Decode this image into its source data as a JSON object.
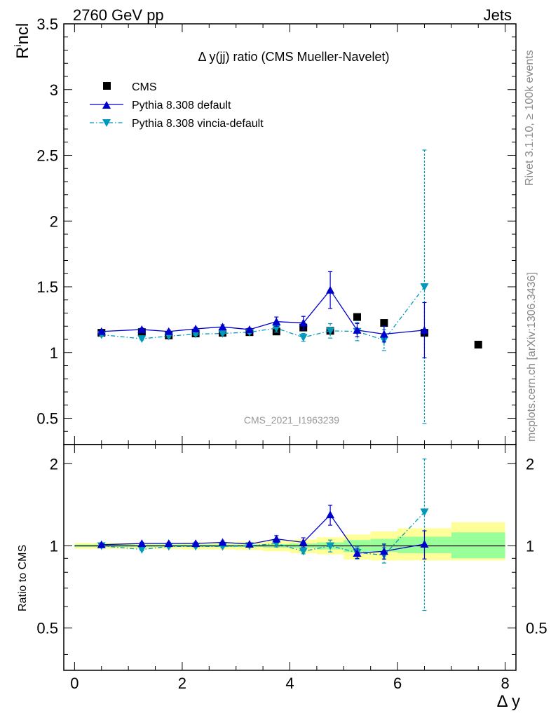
{
  "header": {
    "left": "2760 GeV pp",
    "right": "Jets"
  },
  "watermark": {
    "rivet": "Rivet 3.1.10, ≥ 100k events",
    "mcplots": "mcplots.cern.ch [arXiv:1306.3436]"
  },
  "colors": {
    "cms": "#000000",
    "default": "#0000cc",
    "vincia": "#0099bb",
    "band_stat": "#99ff99",
    "band_tot": "#ffff99"
  },
  "chart_data": {
    "type": "scatter",
    "title": "Δ y(jj) ratio (CMS Mueller-Navelet)",
    "analysis_label": "CMS_2021_I1963239",
    "xlabel": "Δ y",
    "ylabel_main": "R^incl",
    "ylabel_ratio": "Ratio to CMS",
    "xlim": [
      -0.2,
      8.2
    ],
    "ylim_main": [
      0.3,
      3.5
    ],
    "ylim_ratio": [
      0.35,
      2.35
    ],
    "x_ticks": [
      0,
      2,
      4,
      6,
      8
    ],
    "y_ticks_main": [
      0.5,
      1,
      1.5,
      2,
      2.5,
      3,
      3.5
    ],
    "y_ticks_ratio": [
      0.5,
      1,
      2
    ],
    "legend_position": "top-left",
    "legend": [
      "CMS",
      "Pythia 8.308 default",
      "Pythia 8.308 vincia-default"
    ],
    "series": [
      {
        "name": "CMS",
        "marker": "square",
        "x": [
          0.5,
          1.25,
          1.75,
          2.25,
          2.75,
          3.25,
          3.75,
          4.25,
          4.75,
          5.25,
          5.75,
          6.5,
          7.5
        ],
        "y": [
          1.15,
          1.155,
          1.13,
          1.145,
          1.15,
          1.155,
          1.16,
          1.19,
          1.165,
          1.27,
          1.225,
          1.15,
          1.06
        ]
      },
      {
        "name": "Pythia 8.308 default",
        "marker": "triangle-up",
        "line": "solid",
        "x": [
          0.5,
          1.25,
          1.75,
          2.25,
          2.75,
          3.25,
          3.75,
          4.25,
          4.75,
          5.25,
          5.75,
          6.5
        ],
        "y": [
          1.16,
          1.175,
          1.16,
          1.18,
          1.195,
          1.175,
          1.235,
          1.225,
          1.475,
          1.17,
          1.14,
          1.17
        ],
        "yerr": [
          0.01,
          0.01,
          0.01,
          0.01,
          0.015,
          0.01,
          0.035,
          0.05,
          0.14,
          0.05,
          0.06,
          0.21
        ]
      },
      {
        "name": "Pythia 8.308 vincia-default",
        "marker": "triangle-down",
        "line": "dashdot",
        "x": [
          0.5,
          1.25,
          1.75,
          2.25,
          2.75,
          3.25,
          3.75,
          4.25,
          4.75,
          5.25,
          5.75,
          6.5
        ],
        "y": [
          1.135,
          1.105,
          1.125,
          1.14,
          1.145,
          1.155,
          1.185,
          1.115,
          1.165,
          1.16,
          1.095,
          1.5
        ],
        "yerr": [
          0.01,
          0.01,
          0.01,
          0.01,
          0.01,
          0.01,
          0.03,
          0.03,
          0.055,
          0.07,
          0.08,
          1.04
        ]
      }
    ],
    "ratio": {
      "bands": {
        "edges": [
          0,
          1,
          1.5,
          2,
          2.5,
          3,
          3.5,
          4,
          4.5,
          5,
          5.5,
          6,
          7,
          8
        ],
        "stat_lo": [
          0.99,
          0.99,
          0.99,
          0.99,
          0.99,
          0.99,
          0.985,
          0.98,
          0.97,
          0.95,
          0.95,
          0.94,
          0.9
        ],
        "stat_hi": [
          1.01,
          1.01,
          1.01,
          1.01,
          1.01,
          1.01,
          1.015,
          1.02,
          1.03,
          1.05,
          1.06,
          1.08,
          1.12
        ],
        "tot_lo": [
          0.975,
          0.975,
          0.975,
          0.97,
          0.97,
          0.965,
          0.955,
          0.94,
          0.93,
          0.89,
          0.885,
          0.885,
          0.885
        ],
        "tot_hi": [
          1.025,
          1.025,
          1.025,
          1.03,
          1.03,
          1.035,
          1.045,
          1.055,
          1.075,
          1.1,
          1.13,
          1.16,
          1.22
        ]
      },
      "series": [
        {
          "name": "Pythia 8.308 default",
          "x": [
            0.5,
            1.25,
            1.75,
            2.25,
            2.75,
            3.25,
            3.75,
            4.25,
            4.75,
            5.25,
            5.75,
            6.5
          ],
          "y": [
            1.01,
            1.02,
            1.02,
            1.02,
            1.03,
            1.015,
            1.06,
            1.03,
            1.3,
            0.94,
            0.955,
            1.015
          ],
          "yerr": [
            0.01,
            0.01,
            0.01,
            0.01,
            0.01,
            0.01,
            0.03,
            0.04,
            0.11,
            0.04,
            0.06,
            0.12
          ]
        },
        {
          "name": "Pythia 8.308 vincia-default",
          "x": [
            0.5,
            1.25,
            1.75,
            2.25,
            2.75,
            3.25,
            3.75,
            4.25,
            4.75,
            5.25,
            5.75,
            6.5
          ],
          "y": [
            1.0,
            0.97,
            0.995,
            0.995,
            0.995,
            1.0,
            1.02,
            0.955,
            1.0,
            0.945,
            0.925,
            1.33
          ],
          "yerr": [
            0.01,
            0.01,
            0.01,
            0.01,
            0.01,
            0.01,
            0.03,
            0.02,
            0.05,
            0.05,
            0.06,
            0.75
          ]
        }
      ]
    }
  }
}
